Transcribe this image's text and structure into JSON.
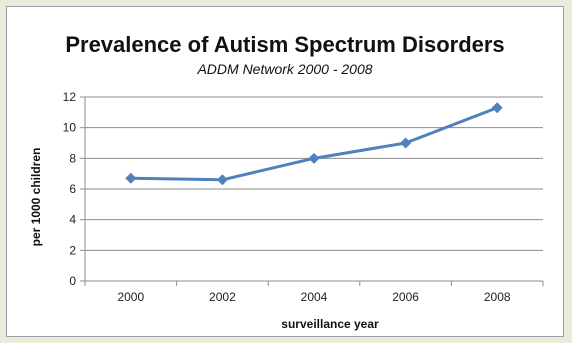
{
  "chart_data": {
    "type": "line",
    "title": "Prevalence of Autism Spectrum Disorders",
    "subtitle": "ADDM Network 2000 - 2008",
    "xlabel": "surveillance year",
    "ylabel": "per 1000 children",
    "x": [
      "2000",
      "2002",
      "2004",
      "2006",
      "2008"
    ],
    "series": [
      {
        "values": [
          6.7,
          6.6,
          8.0,
          9.0,
          11.3
        ]
      }
    ],
    "ylim": [
      0,
      12
    ],
    "yticks": [
      "0",
      "2",
      "4",
      "6",
      "8",
      "10",
      "12"
    ],
    "grid": true,
    "legend": "none",
    "colors": {
      "series": "#4f81bd",
      "background": "#e9ecd8"
    }
  }
}
